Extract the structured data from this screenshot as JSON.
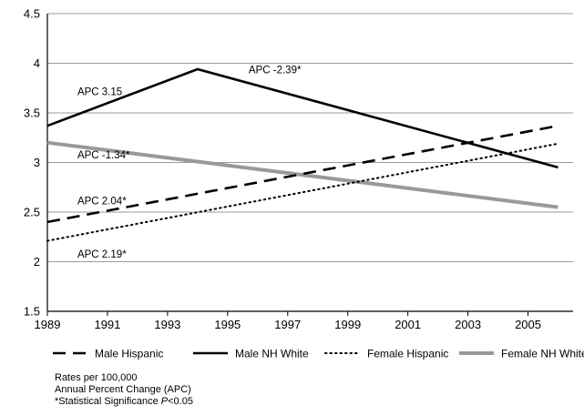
{
  "chart_data": {
    "type": "line",
    "x": [
      1989,
      1994,
      2006
    ],
    "x_ticks": [
      "1989",
      "1991",
      "1993",
      "1995",
      "1997",
      "1999",
      "2001",
      "2003",
      "2005"
    ],
    "y_ticks": [
      "1.5",
      "2",
      "2.5",
      "3",
      "3.5",
      "4",
      "4.5"
    ],
    "xlim": [
      1989,
      2006.5
    ],
    "ylim": [
      1.5,
      4.5
    ],
    "grid": "horizontal",
    "legend_position": "bottom",
    "series": [
      {
        "name": "Male Hispanic",
        "x": [
          1989,
          2006
        ],
        "values": [
          2.4,
          3.37
        ],
        "style": "dashed",
        "color": "#000000"
      },
      {
        "name": "Male NH White",
        "x": [
          1989,
          1994,
          2006
        ],
        "values": [
          3.37,
          3.94,
          2.95
        ],
        "style": "solid",
        "color": "#000000"
      },
      {
        "name": "Female Hispanic",
        "x": [
          1989,
          2006
        ],
        "values": [
          2.21,
          3.19
        ],
        "style": "dotted",
        "color": "#000000"
      },
      {
        "name": "Female NH White",
        "x": [
          1989,
          2006
        ],
        "values": [
          3.2,
          2.55
        ],
        "style": "solid-thick",
        "color": "#999999"
      }
    ],
    "annotations": [
      {
        "text": "APC 3.15",
        "x": 1990.0,
        "y": 3.68
      },
      {
        "text": "APC -2.39*",
        "x": 1995.7,
        "y": 3.9
      },
      {
        "text": "APC -1.34*",
        "x": 1990.0,
        "y": 3.04
      },
      {
        "text": "APC 2.04*",
        "x": 1990.0,
        "y": 2.58
      },
      {
        "text": "APC 2.19*",
        "x": 1990.0,
        "y": 2.04
      }
    ]
  },
  "notes": {
    "line1": "Rates per 100,000",
    "line2": "Annual Percent Change (APC)",
    "line3_prefix": "*Statistical Significance ",
    "line3_italic": "P",
    "line3_suffix": "<0.05"
  }
}
